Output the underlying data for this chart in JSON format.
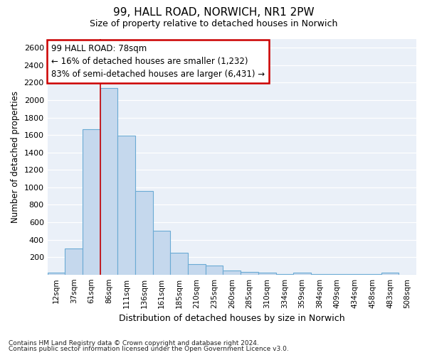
{
  "title1": "99, HALL ROAD, NORWICH, NR1 2PW",
  "title2": "Size of property relative to detached houses in Norwich",
  "xlabel": "Distribution of detached houses by size in Norwich",
  "ylabel": "Number of detached properties",
  "categories": [
    "12sqm",
    "37sqm",
    "61sqm",
    "86sqm",
    "111sqm",
    "136sqm",
    "161sqm",
    "185sqm",
    "210sqm",
    "235sqm",
    "260sqm",
    "285sqm",
    "310sqm",
    "334sqm",
    "359sqm",
    "384sqm",
    "409sqm",
    "434sqm",
    "458sqm",
    "483sqm",
    "508sqm"
  ],
  "values": [
    25,
    300,
    1670,
    2140,
    1590,
    960,
    500,
    250,
    120,
    100,
    50,
    30,
    25,
    5,
    20,
    5,
    5,
    5,
    2,
    25,
    0
  ],
  "bar_color": "#c5d8ed",
  "bar_edge_color": "#6aaad4",
  "background_color": "#eaf0f8",
  "annotation_text": "99 HALL ROAD: 78sqm\n← 16% of detached houses are smaller (1,232)\n83% of semi-detached houses are larger (6,431) →",
  "annotation_box_color": "#ffffff",
  "annotation_box_edge": "#cc0000",
  "footer1": "Contains HM Land Registry data © Crown copyright and database right 2024.",
  "footer2": "Contains public sector information licensed under the Open Government Licence v3.0.",
  "ylim": [
    0,
    2700
  ],
  "yticks": [
    0,
    200,
    400,
    600,
    800,
    1000,
    1200,
    1400,
    1600,
    1800,
    2000,
    2200,
    2400,
    2600
  ]
}
